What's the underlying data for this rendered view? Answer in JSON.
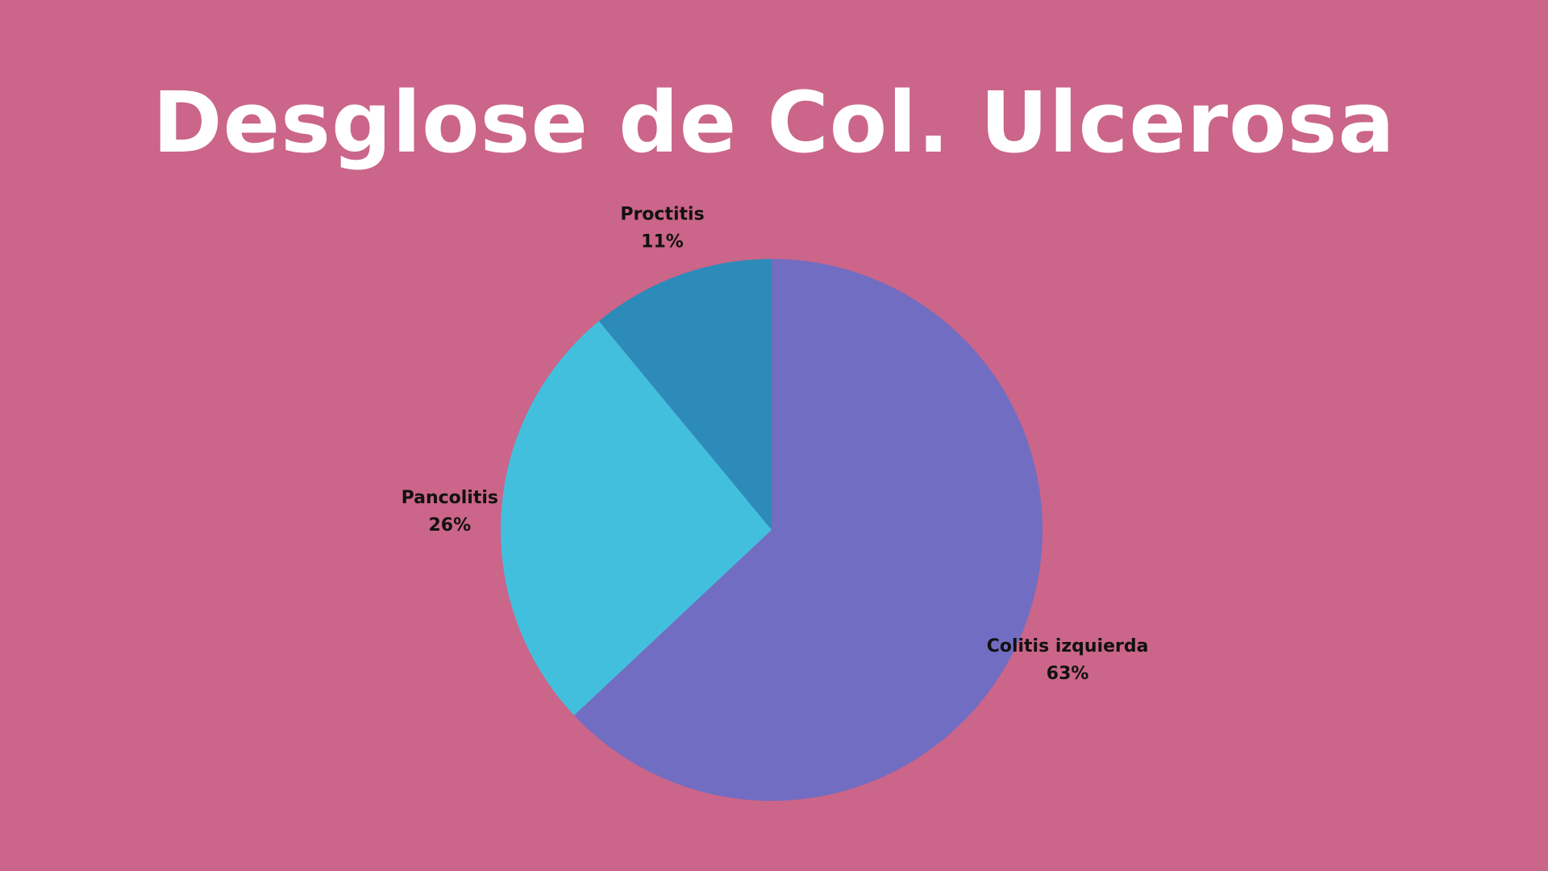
{
  "chart_data": {
    "type": "pie",
    "title": "Desglose de Col. Ulcerosa",
    "start_angle_deg": 0,
    "direction": "clockwise",
    "colors": {
      "background": "#cb6589",
      "title_text": "#ffffff",
      "label_text": "#111111"
    },
    "slices": [
      {
        "name": "Colitis izquierda",
        "value": 63,
        "label": "63%",
        "color": "#716dc2"
      },
      {
        "name": "Pancolitis",
        "value": 26,
        "label": "26%",
        "color": "#43bfde"
      },
      {
        "name": "Proctitis",
        "value": 11,
        "label": "11%",
        "color": "#2d8bba"
      }
    ]
  }
}
